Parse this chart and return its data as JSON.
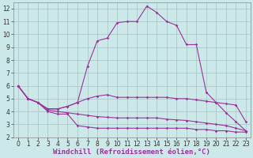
{
  "xlabel": "Windchill (Refroidissement éolien,°C)",
  "x_values": [
    0,
    1,
    2,
    3,
    4,
    5,
    6,
    7,
    8,
    9,
    10,
    11,
    12,
    13,
    14,
    15,
    16,
    17,
    18,
    19,
    20,
    21,
    22,
    23
  ],
  "line1": [
    6.0,
    5.0,
    4.7,
    4.0,
    3.8,
    3.8,
    2.9,
    2.8,
    2.7,
    2.7,
    2.7,
    2.7,
    2.7,
    2.7,
    2.7,
    2.7,
    2.7,
    2.7,
    2.6,
    2.6,
    2.5,
    2.5,
    2.4,
    2.4
  ],
  "line2": [
    6.0,
    5.0,
    4.7,
    4.1,
    4.0,
    3.9,
    3.8,
    3.7,
    3.6,
    3.55,
    3.5,
    3.5,
    3.5,
    3.5,
    3.5,
    3.4,
    3.35,
    3.3,
    3.2,
    3.1,
    3.0,
    2.9,
    2.7,
    2.5
  ],
  "line3": [
    6.0,
    5.0,
    4.7,
    4.2,
    4.2,
    4.4,
    4.7,
    5.0,
    5.2,
    5.3,
    5.1,
    5.1,
    5.1,
    5.1,
    5.1,
    5.1,
    5.0,
    5.0,
    4.9,
    4.8,
    4.7,
    4.6,
    4.5,
    3.2
  ],
  "line4": [
    6.0,
    5.0,
    4.7,
    4.2,
    4.2,
    4.4,
    4.7,
    7.5,
    9.5,
    9.7,
    10.9,
    11.0,
    11.0,
    12.2,
    11.7,
    11.0,
    10.7,
    9.2,
    9.2,
    5.5,
    4.7,
    3.9,
    3.2,
    2.5
  ],
  "line_color": "#993399",
  "bg_color": "#cce8e8",
  "grid_color": "#aacaca",
  "ylim": [
    2,
    12.5
  ],
  "xlim": [
    -0.5,
    23.5
  ],
  "yticks": [
    2,
    3,
    4,
    5,
    6,
    7,
    8,
    9,
    10,
    11,
    12
  ],
  "xticks": [
    0,
    1,
    2,
    3,
    4,
    5,
    6,
    7,
    8,
    9,
    10,
    11,
    12,
    13,
    14,
    15,
    16,
    17,
    18,
    19,
    20,
    21,
    22,
    23
  ],
  "tick_fontsize": 5.5,
  "xlabel_fontsize": 6.5
}
